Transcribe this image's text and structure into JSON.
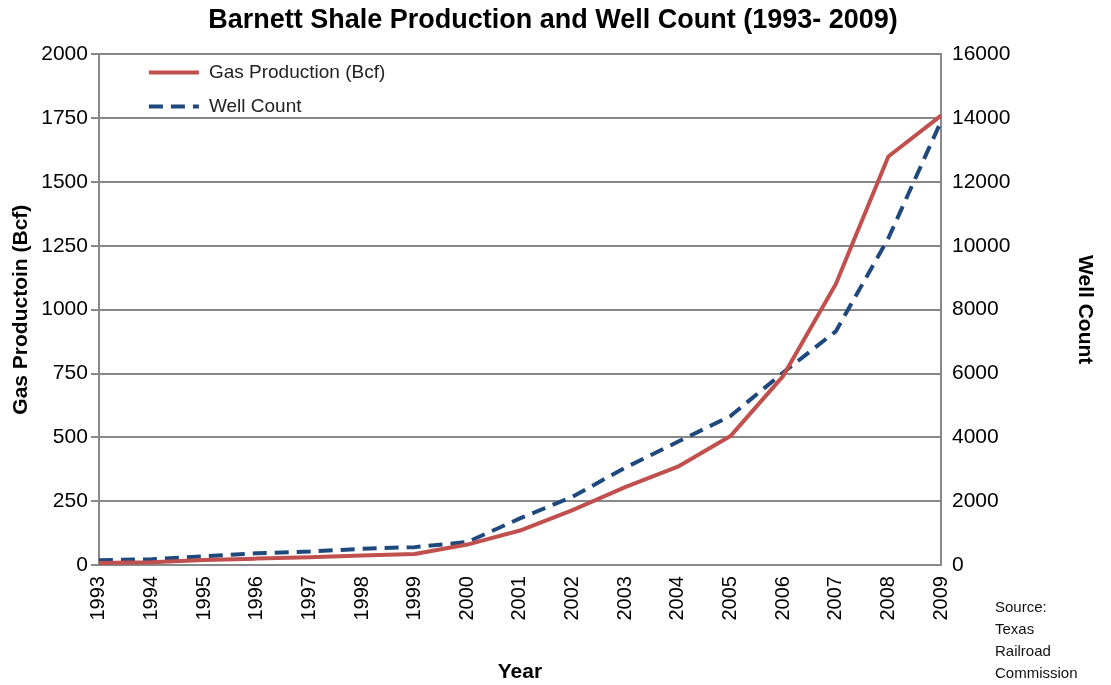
{
  "chart_data": {
    "type": "line",
    "title": "Barnett Shale Production and Well Count (1993- 2009)",
    "xlabel": "Year",
    "ylabel": "Gas Productoin (Bcf)",
    "y2label": "Well Count",
    "categories": [
      "1993",
      "1994",
      "1995",
      "1996",
      "1997",
      "1998",
      "1999",
      "2000",
      "2001",
      "2002",
      "2003",
      "2004",
      "2005",
      "2006",
      "2007",
      "2008",
      "2009"
    ],
    "series": [
      {
        "name": "Gas Production (Bcf)",
        "color": "#c0504d",
        "line_style": "solid",
        "values": [
          8,
          11,
          20,
          25,
          30,
          37,
          43,
          80,
          135,
          215,
          305,
          385,
          505,
          740,
          1100,
          1600,
          1760
        ]
      },
      {
        "name": "Well Count",
        "color": "#1f497d",
        "line_style": "dashed",
        "axis": "y2",
        "values": [
          150,
          180,
          270,
          370,
          420,
          510,
          560,
          720,
          1460,
          2140,
          3050,
          3860,
          4670,
          6030,
          7320,
          10240,
          13900
        ]
      }
    ],
    "ylim": [
      0,
      2000
    ],
    "yticks": [
      0,
      250,
      500,
      750,
      1000,
      1250,
      1500,
      1750,
      2000
    ],
    "y2lim": [
      0,
      16000
    ],
    "y2ticks": [
      0,
      2000,
      4000,
      6000,
      8000,
      10000,
      12000,
      14000,
      16000
    ],
    "grid": "y",
    "legend": "top left",
    "marker": "none",
    "annotations": [
      "Source: Texas Railroad Commission"
    ]
  }
}
